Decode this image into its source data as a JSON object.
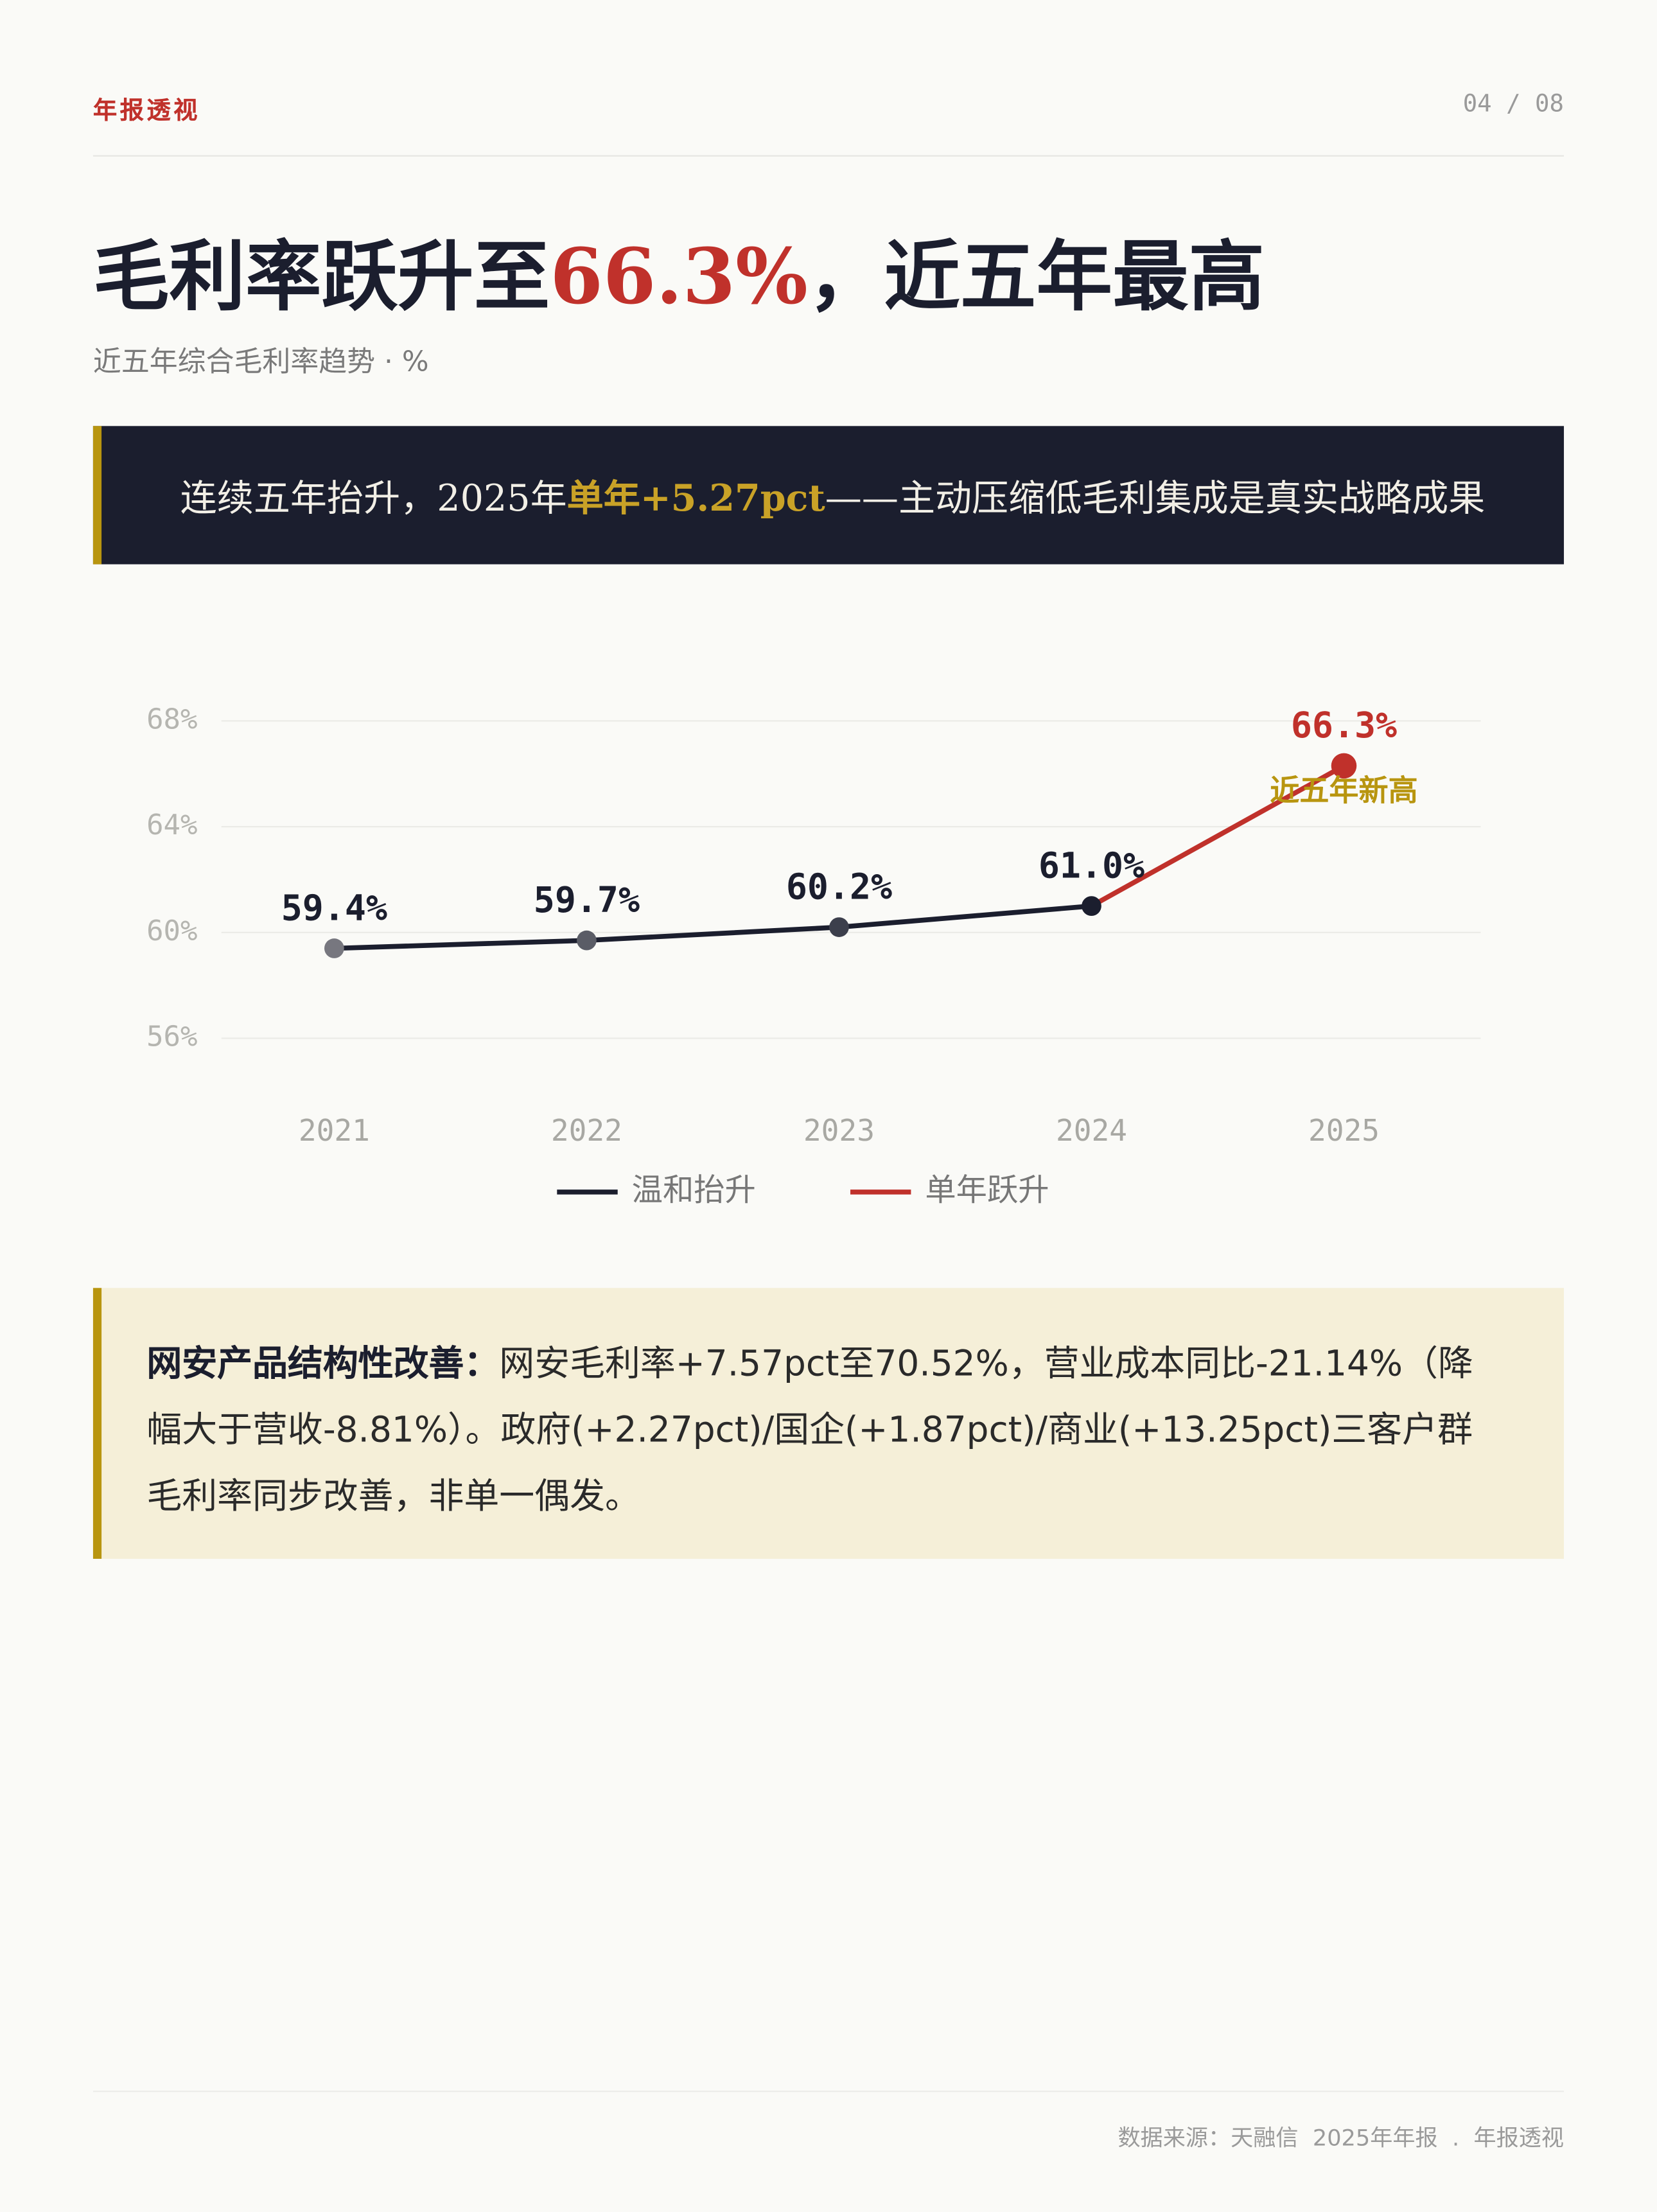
{
  "header": {
    "section": "年报透视",
    "page": "04 / 08"
  },
  "title": {
    "prefix": "毛利率跃升至",
    "highlight": "66.3%",
    "suffix": "，近五年最高"
  },
  "subtitle": "近五年综合毛利率趋势 · %",
  "banner": {
    "prefix": "连续五年抬升，2025年",
    "highlight": "单年+5.27pct",
    "suffix": "——主动压缩低毛利集成是真实战略成果"
  },
  "chart_data": {
    "type": "line",
    "categories": [
      "2021",
      "2022",
      "2023",
      "2024",
      "2025"
    ],
    "series": [
      {
        "name": "温和抬升",
        "color": "#1b1e2e",
        "values": [
          59.4,
          59.7,
          60.2,
          61.0,
          null
        ],
        "value_labels": [
          "59.4%",
          "59.7%",
          "60.2%",
          "61.0%",
          null
        ]
      },
      {
        "name": "单年跃升",
        "color": "#c0312b",
        "values": [
          null,
          null,
          null,
          61.0,
          66.3
        ],
        "value_labels": [
          null,
          null,
          null,
          null,
          "66.3%"
        ]
      }
    ],
    "annotation": "近五年新高",
    "ylim": [
      56,
      68
    ],
    "yticks": [
      {
        "value": 56,
        "label": "56%"
      },
      {
        "value": 60,
        "label": "60%"
      },
      {
        "value": 64,
        "label": "64%"
      },
      {
        "value": 68,
        "label": "68%"
      }
    ],
    "grid": true
  },
  "note": {
    "lead": "网安产品结构性改善：",
    "body": "网安毛利率+7.57pct至70.52%，营业成本同比-21.14%（降幅大于营收-8.81%）。政府(+2.27pct)/国企(+1.87pct)/商业(+13.25pct)三客户群毛利率同步改善，非单一偶发。"
  },
  "footer": "数据来源：天融信  2025年年报  .  年报透视"
}
